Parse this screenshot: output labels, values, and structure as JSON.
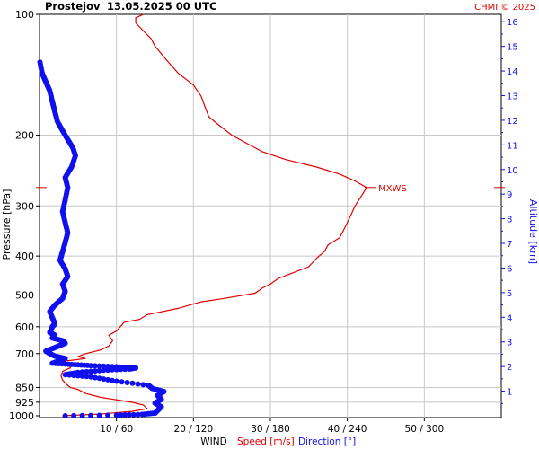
{
  "header": {
    "station": "Prostejov",
    "datetime": "13.05.2025 00 UTC",
    "credit": "CHMI © 2025"
  },
  "colors": {
    "speed": "#e00000",
    "direction": "#1010ee",
    "grid": "#c8c8c8",
    "frame": "#000000"
  },
  "chart_data": {
    "type": "line",
    "left_axis": {
      "label": "Pressure [hPa]",
      "scale": "log-pressure",
      "range": [
        1000,
        100
      ],
      "ticks": [
        "100",
        "200",
        "300",
        "400",
        "500",
        "600",
        "700",
        "850",
        "925",
        "1000"
      ]
    },
    "right_axis": {
      "label": "Altitude [km]",
      "range": [
        0,
        16.3
      ],
      "ticks": [
        "1",
        "2",
        "3",
        "4",
        "5",
        "6",
        "7",
        "8",
        "9",
        "10",
        "11",
        "12",
        "13",
        "14",
        "15",
        "16"
      ]
    },
    "bottom_axis": {
      "label_prefix": "WIND",
      "speed_label": "Speed [m/s]",
      "direction_label": "Direction [°]",
      "speed_range": [
        0,
        60
      ],
      "direction_range": [
        0,
        360
      ],
      "ticks": [
        "10 / 60",
        "20 / 120",
        "30 / 180",
        "40 / 240",
        "50 / 300"
      ]
    },
    "annotation": {
      "text": "MXWS",
      "pressure": 270
    },
    "series": [
      {
        "name": "Speed [m/s]",
        "axis": "speed",
        "points": [
          [
            1000,
            3
          ],
          [
            990,
            8
          ],
          [
            975,
            12
          ],
          [
            960,
            14
          ],
          [
            940,
            13.5
          ],
          [
            925,
            12
          ],
          [
            900,
            8
          ],
          [
            880,
            6
          ],
          [
            860,
            5
          ],
          [
            850,
            4
          ],
          [
            835,
            3.5
          ],
          [
            815,
            3
          ],
          [
            795,
            2.8
          ],
          [
            775,
            3
          ],
          [
            760,
            4
          ],
          [
            745,
            3.8
          ],
          [
            735,
            1.5
          ],
          [
            728,
            4
          ],
          [
            720,
            6
          ],
          [
            712,
            5
          ],
          [
            700,
            6
          ],
          [
            685,
            8
          ],
          [
            670,
            9
          ],
          [
            650,
            9.5
          ],
          [
            630,
            9
          ],
          [
            615,
            10
          ],
          [
            600,
            10.5
          ],
          [
            585,
            11
          ],
          [
            575,
            13
          ],
          [
            560,
            14
          ],
          [
            540,
            18
          ],
          [
            520,
            21
          ],
          [
            510,
            24
          ],
          [
            495,
            28
          ],
          [
            480,
            29
          ],
          [
            470,
            30
          ],
          [
            455,
            31
          ],
          [
            440,
            33
          ],
          [
            425,
            35
          ],
          [
            405,
            36
          ],
          [
            390,
            37
          ],
          [
            375,
            37.5
          ],
          [
            360,
            39
          ],
          [
            345,
            39.5
          ],
          [
            330,
            40
          ],
          [
            315,
            40.5
          ],
          [
            300,
            41
          ],
          [
            290,
            41.5
          ],
          [
            280,
            42
          ],
          [
            270,
            42.5
          ],
          [
            260,
            41
          ],
          [
            250,
            39
          ],
          [
            240,
            36
          ],
          [
            230,
            32
          ],
          [
            220,
            29
          ],
          [
            210,
            27
          ],
          [
            200,
            25
          ],
          [
            190,
            23.5
          ],
          [
            180,
            22
          ],
          [
            170,
            21.5
          ],
          [
            160,
            21
          ],
          [
            150,
            20
          ],
          [
            140,
            18
          ],
          [
            130,
            16.5
          ],
          [
            120,
            15
          ],
          [
            115,
            14.5
          ],
          [
            110,
            13.5
          ],
          [
            105,
            12.5
          ],
          [
            102,
            12.5
          ],
          [
            100,
            13.5
          ]
        ]
      },
      {
        "name": "Direction [°]",
        "axis": "direction",
        "points": [
          [
            1000,
            20
          ],
          [
            996,
            60
          ],
          [
            992,
            80
          ],
          [
            985,
            90
          ],
          [
            970,
            92
          ],
          [
            950,
            95
          ],
          [
            930,
            90
          ],
          [
            910,
            95
          ],
          [
            890,
            92
          ],
          [
            870,
            97
          ],
          [
            855,
            88
          ],
          [
            840,
            85
          ],
          [
            820,
            60
          ],
          [
            800,
            40
          ],
          [
            790,
            20
          ],
          [
            780,
            30
          ],
          [
            770,
            50
          ],
          [
            765,
            70
          ],
          [
            760,
            75
          ],
          [
            755,
            60
          ],
          [
            750,
            40
          ],
          [
            745,
            25
          ],
          [
            740,
            10
          ],
          [
            730,
            15
          ],
          [
            720,
            20
          ],
          [
            710,
            12
          ],
          [
            700,
            8
          ],
          [
            690,
            5
          ],
          [
            680,
            10
          ],
          [
            670,
            15
          ],
          [
            660,
            20
          ],
          [
            650,
            18
          ],
          [
            640,
            10
          ],
          [
            630,
            12
          ],
          [
            620,
            8
          ],
          [
            600,
            10
          ],
          [
            590,
            12
          ],
          [
            570,
            10
          ],
          [
            550,
            8
          ],
          [
            530,
            12
          ],
          [
            510,
            18
          ],
          [
            490,
            20
          ],
          [
            470,
            18
          ],
          [
            450,
            22
          ],
          [
            430,
            20
          ],
          [
            410,
            16
          ],
          [
            390,
            18
          ],
          [
            370,
            20
          ],
          [
            350,
            22
          ],
          [
            330,
            20
          ],
          [
            310,
            18
          ],
          [
            290,
            20
          ],
          [
            270,
            22
          ],
          [
            255,
            20
          ],
          [
            240,
            25
          ],
          [
            225,
            28
          ],
          [
            215,
            26
          ],
          [
            205,
            22
          ],
          [
            195,
            18
          ],
          [
            185,
            14
          ],
          [
            175,
            12
          ],
          [
            165,
            10
          ],
          [
            155,
            8
          ],
          [
            150,
            6
          ],
          [
            145,
            4
          ],
          [
            140,
            2
          ],
          [
            130,
            0
          ]
        ]
      }
    ],
    "grid": true
  }
}
